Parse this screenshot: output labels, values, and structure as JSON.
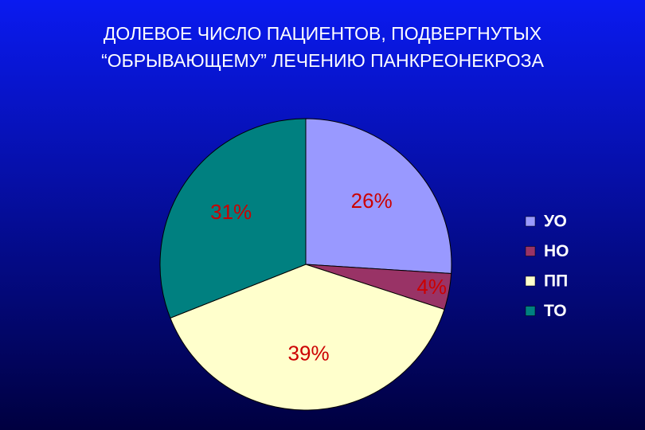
{
  "chart_data": {
    "type": "pie",
    "title": [
      "ДОЛЕВОЕ ЧИСЛО ПАЦИЕНТОВ, ПОДВЕРГНУТЫХ",
      "“ОБРЫВАЮЩЕМУ” ЛЕЧЕНИЮ ПАНКРЕОНЕКРОЗА"
    ],
    "categories": [
      "УО",
      "НО",
      "ПП",
      "ТО"
    ],
    "values": [
      26,
      4,
      39,
      31
    ],
    "value_labels": [
      "26%",
      "4%",
      "39%",
      "31%"
    ],
    "colors": [
      "#9999ff",
      "#993366",
      "#ffffcc",
      "#008080"
    ],
    "legend": "right"
  }
}
